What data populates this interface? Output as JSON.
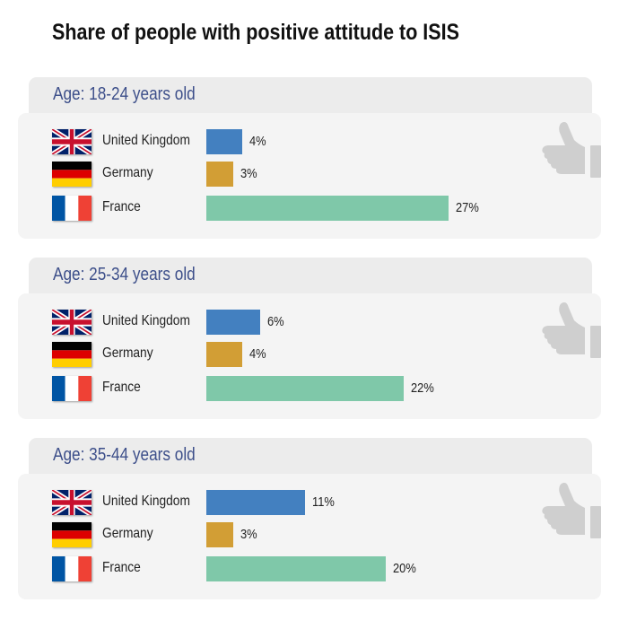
{
  "title": "Share of people with positive attitude to ISIS",
  "colors": {
    "United Kingdom": "#4380c0",
    "Germany": "#d29e35",
    "France": "#7fc8a9"
  },
  "flag_icons": [
    "uk-flag-icon",
    "germany-flag-icon",
    "france-flag-icon"
  ],
  "decoration_icon": "thumbs-up-icon",
  "chart_data": [
    {
      "type": "bar",
      "orientation": "horizontal",
      "title": "Age: 18-24 years old",
      "categories": [
        "United Kingdom",
        "Germany",
        "France"
      ],
      "values": [
        4,
        3,
        27
      ],
      "value_labels": [
        "4%",
        "3%",
        "27%"
      ],
      "unit": "%",
      "xlim": [
        0,
        30
      ],
      "grid": false
    },
    {
      "type": "bar",
      "orientation": "horizontal",
      "title": "Age: 25-34 years old",
      "categories": [
        "United Kingdom",
        "Germany",
        "France"
      ],
      "values": [
        6,
        4,
        22
      ],
      "value_labels": [
        "6%",
        "4%",
        "22%"
      ],
      "unit": "%",
      "xlim": [
        0,
        30
      ],
      "grid": false
    },
    {
      "type": "bar",
      "orientation": "horizontal",
      "title": "Age: 35-44 years old",
      "categories": [
        "United Kingdom",
        "Germany",
        "France"
      ],
      "values": [
        11,
        3,
        20
      ],
      "value_labels": [
        "11%",
        "3%",
        "20%"
      ],
      "unit": "%",
      "xlim": [
        0,
        30
      ],
      "grid": false
    }
  ]
}
